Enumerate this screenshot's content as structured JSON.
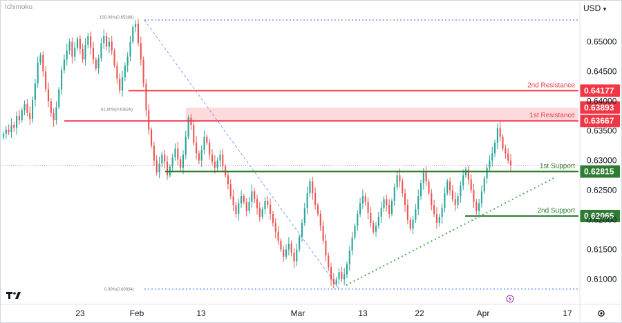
{
  "indicator_label": "Ichimoku",
  "currency_selector": "USD",
  "colors": {
    "up": "#26a69a",
    "down": "#ef5350",
    "resistance": "#f23645",
    "support": "#2e7d32",
    "fib": "#2962ff",
    "trend": "#4caf50"
  },
  "chart_data": {
    "type": "candlestick",
    "y_axis": {
      "min": 0.606,
      "max": 0.656,
      "ticks": [
        "0.65000",
        "0.64500",
        "0.64000",
        "0.63500",
        "0.63000",
        "0.62500",
        "0.62000",
        "0.61500",
        "0.61000"
      ]
    },
    "x_axis": {
      "ticks": [
        "23",
        "Feb",
        "13",
        "Mar",
        "13",
        "22",
        "Apr",
        "17"
      ]
    },
    "levels": [
      {
        "name": "2nd Resistance",
        "value": "0.64177",
        "type": "resistance"
      },
      {
        "name": "",
        "value": "0.63893",
        "type": "resistance-zone"
      },
      {
        "name": "1st Resistance",
        "value": "0.63667",
        "type": "resistance"
      },
      {
        "name": "1st Support",
        "value": "0.62815",
        "type": "support"
      },
      {
        "name": "2nd Support",
        "value": "0.62065",
        "type": "support"
      }
    ],
    "fib_labels": [
      "100.00%(0.65368)",
      "61.80%(0.63826)",
      "0.00%(0.60834)"
    ],
    "candles_close": [
      0.6345,
      0.6352,
      0.6348,
      0.636,
      0.6355,
      0.6375,
      0.6368,
      0.6385,
      0.6395,
      0.638,
      0.637,
      0.6402,
      0.643,
      0.6465,
      0.6478,
      0.645,
      0.642,
      0.64,
      0.638,
      0.6368,
      0.639,
      0.642,
      0.6452,
      0.647,
      0.6485,
      0.65,
      0.6475,
      0.649,
      0.6505,
      0.6488,
      0.647,
      0.6495,
      0.651,
      0.649,
      0.647,
      0.6455,
      0.6472,
      0.6498,
      0.651,
      0.6492,
      0.65,
      0.6485,
      0.646,
      0.6438,
      0.6418,
      0.644,
      0.646,
      0.6475,
      0.65,
      0.6525,
      0.653,
      0.6498,
      0.647,
      0.643,
      0.6385,
      0.6352,
      0.6325,
      0.63,
      0.628,
      0.6295,
      0.631,
      0.6298,
      0.6275,
      0.629,
      0.6305,
      0.632,
      0.6302,
      0.6288,
      0.631,
      0.634,
      0.6372,
      0.636,
      0.633,
      0.6312,
      0.63,
      0.6318,
      0.634,
      0.633,
      0.631,
      0.6298,
      0.6288,
      0.63,
      0.631,
      0.629,
      0.6275,
      0.626,
      0.624,
      0.6225,
      0.621,
      0.6228,
      0.624,
      0.623,
      0.6215,
      0.623,
      0.6248,
      0.6235,
      0.622,
      0.6205,
      0.6218,
      0.6232,
      0.6225,
      0.621,
      0.6195,
      0.618,
      0.6165,
      0.615,
      0.6138,
      0.615,
      0.616,
      0.6145,
      0.613,
      0.615,
      0.6172,
      0.6195,
      0.622,
      0.6245,
      0.6265,
      0.6245,
      0.6225,
      0.621,
      0.619,
      0.6165,
      0.614,
      0.612,
      0.61,
      0.6092,
      0.61,
      0.6112,
      0.61,
      0.6108,
      0.6125,
      0.6148,
      0.617,
      0.619,
      0.621,
      0.6228,
      0.624,
      0.623,
      0.6212,
      0.6195,
      0.618,
      0.619,
      0.6205,
      0.622,
      0.6235,
      0.6225,
      0.621,
      0.6232,
      0.6255,
      0.6275,
      0.6265,
      0.6245,
      0.6225,
      0.62,
      0.6185,
      0.62,
      0.6218,
      0.624,
      0.6262,
      0.628,
      0.6265,
      0.6245,
      0.6225,
      0.621,
      0.6195,
      0.6205,
      0.622,
      0.6245,
      0.6265,
      0.625,
      0.6235,
      0.6225,
      0.624,
      0.6258,
      0.6275,
      0.6285,
      0.6268,
      0.625,
      0.623,
      0.6215,
      0.6228,
      0.6248,
      0.627,
      0.6288,
      0.63,
      0.6312,
      0.633,
      0.6355,
      0.634,
      0.632,
      0.6312,
      0.63,
      0.6292
    ]
  }
}
